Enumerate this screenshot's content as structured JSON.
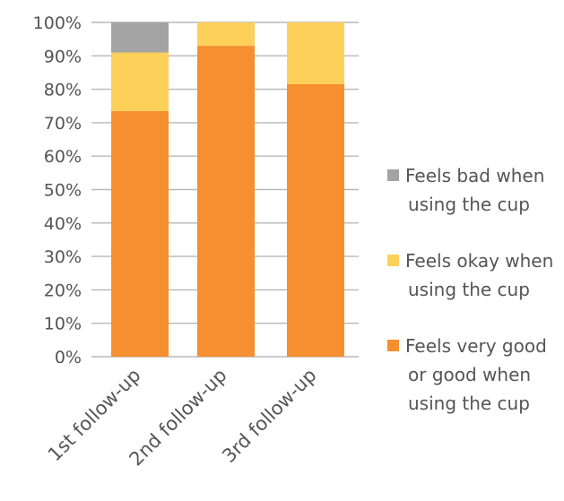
{
  "chart_data": {
    "type": "bar",
    "stacked": true,
    "title": "",
    "xlabel": "",
    "ylabel": "",
    "ylim": [
      0,
      100
    ],
    "y_ticks": [
      "0%",
      "10%",
      "20%",
      "30%",
      "40%",
      "50%",
      "60%",
      "70%",
      "80%",
      "90%",
      "100%"
    ],
    "grid": true,
    "legend_position": "right",
    "categories": [
      "1st follow-up",
      "2nd follow-up",
      "3rd follow-up"
    ],
    "series": [
      {
        "name": "Feels very good or good when using the cup",
        "legend_lines": [
          "Feels very good",
          "or good when",
          "using the cup"
        ],
        "color": "#f58f30",
        "values": [
          73.5,
          93,
          81.5
        ]
      },
      {
        "name": "Feels okay when using the cup",
        "legend_lines": [
          "Feels okay when",
          "using the cup"
        ],
        "color": "#fdd059",
        "values": [
          17.5,
          7,
          18.5
        ]
      },
      {
        "name": "Feels bad when using the cup",
        "legend_lines": [
          "Feels bad when",
          "using the cup"
        ],
        "color": "#a3a3a3",
        "values": [
          9,
          0,
          0
        ]
      }
    ]
  }
}
